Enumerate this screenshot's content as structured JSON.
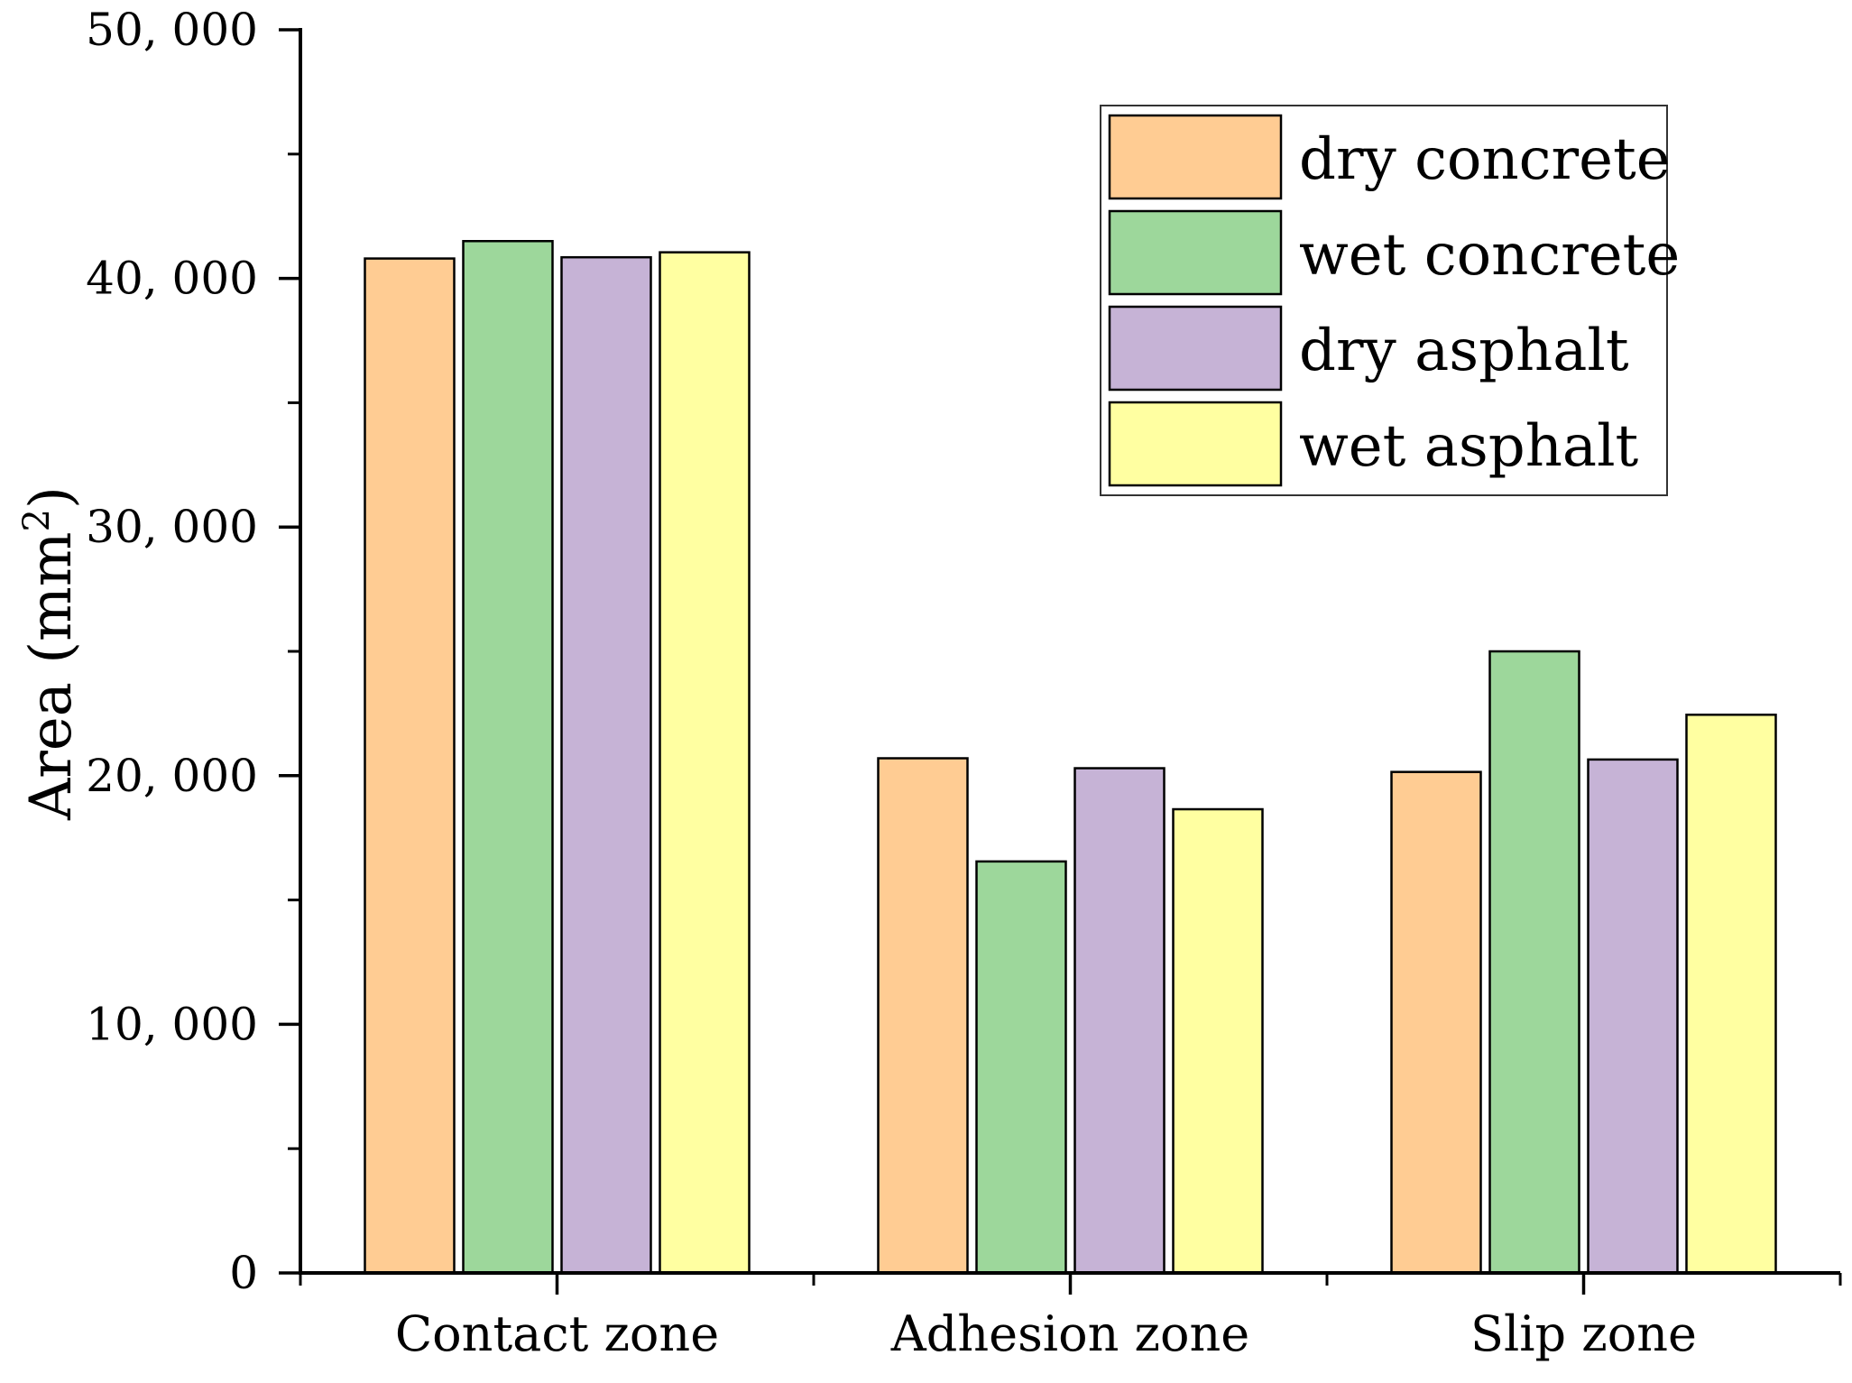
{
  "chart_data": {
    "type": "bar",
    "title": "",
    "xlabel": "",
    "ylabel": "Area (mm",
    "ylabel_superscript": "2",
    "ylabel_suffix": ")",
    "categories": [
      "Contact zone",
      "Adhesion zone",
      "Slip zone"
    ],
    "series": [
      {
        "name": "dry concrete",
        "color": "#FFCC93",
        "values": [
          40800,
          20700,
          20150
        ]
      },
      {
        "name": "wet concrete",
        "color": "#9DD79B",
        "values": [
          41500,
          16550,
          25000
        ]
      },
      {
        "name": "dry asphalt",
        "color": "#C6B3D6",
        "values": [
          40850,
          20300,
          20650
        ]
      },
      {
        "name": "wet asphalt",
        "color": "#FFFFA1",
        "values": [
          41050,
          18650,
          22450
        ]
      }
    ],
    "ylim": [
      0,
      50000
    ],
    "yticks": [
      0,
      10000,
      20000,
      30000,
      40000,
      50000
    ],
    "ytick_labels": [
      "0",
      "10, 000",
      "20, 000",
      "30, 000",
      "40, 000",
      "50, 000"
    ],
    "grid": false,
    "legend_position": "top-right"
  }
}
